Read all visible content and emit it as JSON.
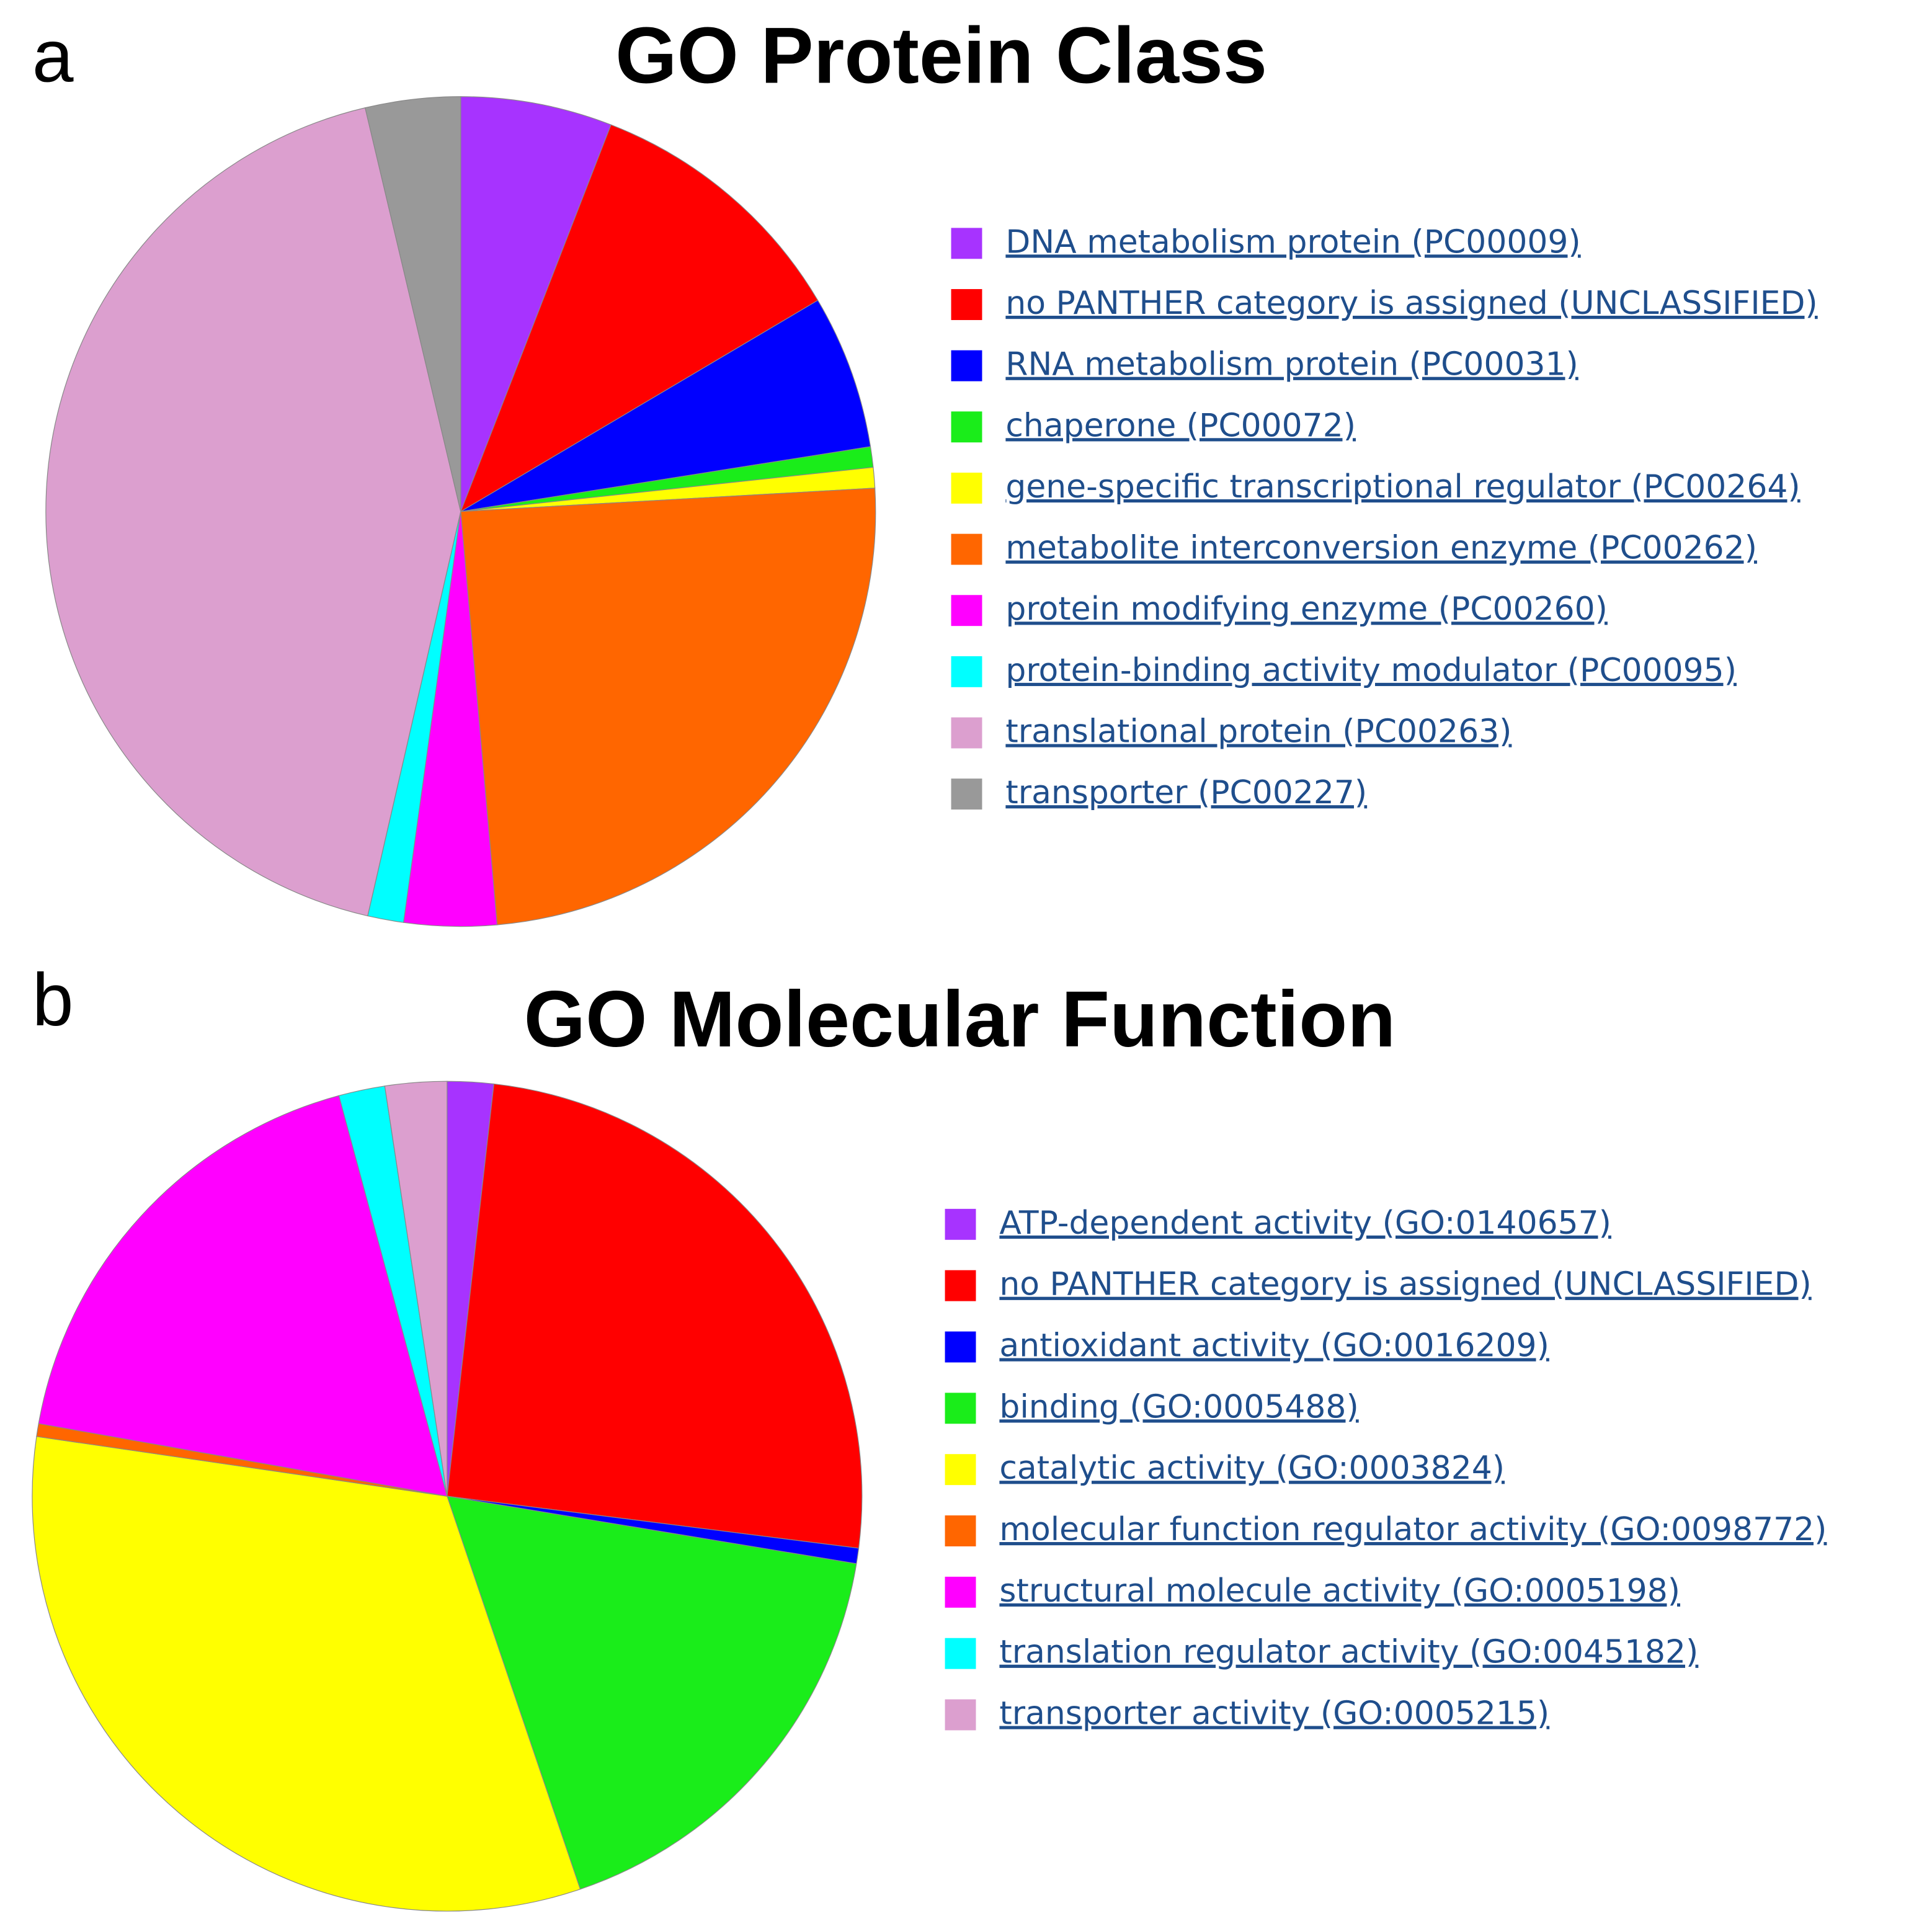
{
  "chart_data": [
    {
      "type": "pie",
      "panel_label": "a",
      "title": "GO Protein Class",
      "categories": [
        "DNA metabolism protein (PC00009)",
        "no PANTHER category is assigned (UNCLASSIFIED)",
        "RNA metabolism protein (PC00031)",
        "chaperone (PC00072)",
        "gene-specific transcriptional regulator (PC00264)",
        "metabolite interconversion enzyme (PC00262)",
        "protein modifying enzyme (PC00260)",
        "protein-binding activity modulator (PC00095)",
        "translational protein (PC00263)",
        "transporter (PC00227)"
      ],
      "values": [
        5.9,
        10.6,
        6.0,
        0.8,
        0.8,
        24.5,
        3.6,
        1.4,
        42.7,
        3.7
      ],
      "colors": [
        "#a733ff",
        "#ff0000",
        "#0000ff",
        "#1aed1a",
        "#ffff00",
        "#ff6600",
        "#ff00ff",
        "#00ffff",
        "#dc9fcf",
        "#999999"
      ]
    },
    {
      "type": "pie",
      "panel_label": "b",
      "title": "GO Molecular Function",
      "categories": [
        "ATP-dependent activity (GO:0140657)",
        "no PANTHER category is assigned (UNCLASSIFIED)",
        "antioxidant activity (GO:0016209)",
        "binding (GO:0005488)",
        "catalytic activity (GO:0003824)",
        "molecular function regulator activity (GO:0098772)",
        "structural molecule activity (GO:0005198)",
        "translation regulator activity (GO:0045182)",
        "transporter activity (GO:0005215)"
      ],
      "values": [
        1.8,
        25.2,
        0.6,
        17.2,
        32.5,
        0.5,
        18.0,
        1.8,
        2.4
      ],
      "colors": [
        "#a733ff",
        "#ff0000",
        "#0000ff",
        "#1aed1a",
        "#ffff00",
        "#ff6600",
        "#ff00ff",
        "#00ffff",
        "#dc9fcf"
      ]
    }
  ]
}
